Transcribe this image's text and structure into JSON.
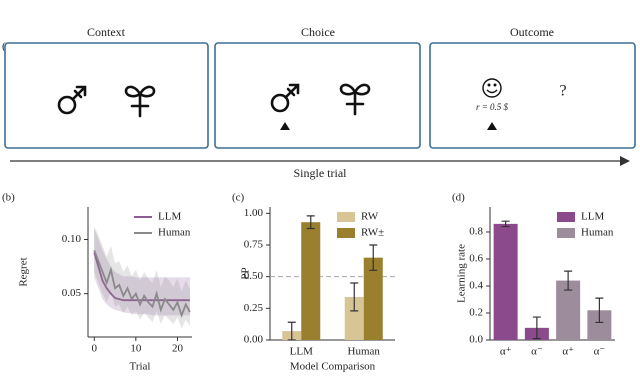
{
  "panel_a": {
    "label": "(a)",
    "boxes": [
      {
        "title": "Context"
      },
      {
        "title": "Choice"
      },
      {
        "title": "Outcome"
      }
    ],
    "outcome_reward": "r = 0.5 $",
    "outcome_unknown": "?",
    "axis_label": "Single trial"
  },
  "chart_data": [
    {
      "type": "line",
      "label": "(b)",
      "xlabel": "Trial",
      "ylabel": "Regret",
      "x": [
        0,
        1,
        2,
        3,
        4,
        5,
        6,
        7,
        8,
        9,
        10,
        11,
        12,
        13,
        14,
        15,
        16,
        17,
        18,
        19,
        20,
        21,
        22,
        23
      ],
      "series": [
        {
          "name": "LLM",
          "color": "#8e5c94",
          "values": [
            0.088,
            0.075,
            0.062,
            0.055,
            0.05,
            0.046,
            0.045,
            0.044,
            0.044,
            0.044,
            0.044,
            0.044,
            0.044,
            0.044,
            0.044,
            0.044,
            0.044,
            0.044,
            0.044,
            0.044,
            0.044,
            0.044,
            0.044,
            0.044
          ],
          "lower": [
            0.065,
            0.055,
            0.045,
            0.04,
            0.037,
            0.035,
            0.034,
            0.033,
            0.032,
            0.032,
            0.031,
            0.031,
            0.031,
            0.031,
            0.03,
            0.03,
            0.03,
            0.03,
            0.03,
            0.03,
            0.03,
            0.03,
            0.03,
            0.03
          ],
          "upper": [
            0.11,
            0.1,
            0.09,
            0.082,
            0.075,
            0.07,
            0.068,
            0.066,
            0.066,
            0.066,
            0.065,
            0.065,
            0.065,
            0.065,
            0.065,
            0.065,
            0.065,
            0.065,
            0.065,
            0.065,
            0.065,
            0.065,
            0.065,
            0.065
          ]
        },
        {
          "name": "Human",
          "color": "#8a8a8a",
          "values": [
            0.09,
            0.08,
            0.07,
            0.06,
            0.072,
            0.055,
            0.058,
            0.048,
            0.055,
            0.045,
            0.05,
            0.04,
            0.048,
            0.042,
            0.038,
            0.05,
            0.035,
            0.045,
            0.04,
            0.035,
            0.042,
            0.03,
            0.04,
            0.033
          ],
          "lower": [
            0.07,
            0.06,
            0.05,
            0.042,
            0.052,
            0.038,
            0.04,
            0.032,
            0.038,
            0.03,
            0.034,
            0.026,
            0.032,
            0.028,
            0.024,
            0.034,
            0.022,
            0.03,
            0.026,
            0.022,
            0.028,
            0.018,
            0.026,
            0.02
          ],
          "upper": [
            0.112,
            0.104,
            0.094,
            0.084,
            0.094,
            0.078,
            0.08,
            0.07,
            0.076,
            0.066,
            0.072,
            0.062,
            0.07,
            0.064,
            0.06,
            0.072,
            0.056,
            0.066,
            0.062,
            0.056,
            0.064,
            0.052,
            0.062,
            0.054
          ]
        }
      ],
      "xlim": [
        -1.5,
        23.5
      ],
      "xticks": [
        0,
        10,
        20
      ],
      "ylim": [
        0.01,
        0.13
      ],
      "yticks": [
        {
          "value": 0.05,
          "label": "0.05"
        },
        {
          "value": 0.1,
          "label": "0.10"
        }
      ],
      "legend": "upper right"
    },
    {
      "type": "bar",
      "label": "(c)",
      "xlabel": "Model Comparison",
      "ylabel": "PP",
      "categories": [
        "LLM",
        "Human"
      ],
      "series": [
        {
          "name": "RW",
          "color": "#d8c596",
          "values": [
            0.07,
            0.34
          ],
          "errors": [
            0.07,
            0.11
          ]
        },
        {
          "name": "RW±",
          "color": "#9a7f2e",
          "values": [
            0.93,
            0.65
          ],
          "errors": [
            0.05,
            0.1
          ]
        }
      ],
      "ylim": [
        0,
        1.05
      ],
      "yticks": [
        {
          "value": 0,
          "label": "0.00"
        },
        {
          "value": 0.25,
          "label": "0.25"
        },
        {
          "value": 0.5,
          "label": "0.50"
        },
        {
          "value": 0.75,
          "label": "0.75"
        },
        {
          "value": 1,
          "label": "1.00"
        }
      ],
      "hline": 0.5,
      "legend": "upper right"
    },
    {
      "type": "bar",
      "label": "(d)",
      "ylabel": "Learning rate",
      "categories": [
        "α⁺",
        "α⁻",
        "α⁺",
        "α⁻"
      ],
      "series": [
        {
          "name": "LLM",
          "color": "#8b4a8b",
          "values": [
            0.86,
            0.09,
            null,
            null
          ],
          "errors": [
            0.02,
            0.08,
            null,
            null
          ]
        },
        {
          "name": "Human",
          "color": "#9c8c9c",
          "values": [
            null,
            null,
            0.44,
            0.22
          ],
          "errors": [
            null,
            null,
            0.07,
            0.09
          ]
        }
      ],
      "ylim": [
        0,
        0.985
      ],
      "yticks": [
        {
          "value": 0,
          "label": "0.0"
        },
        {
          "value": 0.2,
          "label": "0.2"
        },
        {
          "value": 0.4,
          "label": "0.4"
        },
        {
          "value": 0.6,
          "label": "0.6"
        },
        {
          "value": 0.8,
          "label": "0.8"
        }
      ],
      "legend": "upper right"
    }
  ]
}
